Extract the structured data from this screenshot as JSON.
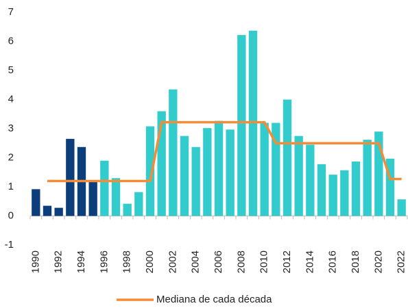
{
  "chart_data": {
    "type": "bar",
    "categories": [
      "1990",
      null,
      "1992",
      null,
      "1994",
      null,
      "1996",
      null,
      "1998",
      null,
      "2000",
      null,
      "2002",
      null,
      "2004",
      null,
      "2006",
      null,
      "2008",
      null,
      "2010",
      null,
      "2012",
      null,
      "2014",
      null,
      "2016",
      null,
      "2018",
      null,
      "2020",
      null,
      "2022"
    ],
    "values": [
      0.92,
      0.35,
      0.28,
      2.65,
      2.37,
      1.2,
      1.9,
      1.3,
      0.42,
      0.82,
      3.08,
      3.6,
      4.35,
      2.75,
      2.37,
      3.02,
      3.27,
      2.97,
      6.22,
      6.37,
      3.2,
      3.2,
      4.0,
      2.75,
      2.45,
      1.78,
      1.42,
      1.57,
      1.87,
      2.62,
      2.9,
      1.97,
      0.57
    ],
    "colors": [
      "#0b3e7a",
      "#0b3e7a",
      "#0b3e7a",
      "#0b3e7a",
      "#0b3e7a",
      "#0b3e7a",
      "#33cccc",
      "#33cccc",
      "#33cccc",
      "#33cccc",
      "#33cccc",
      "#33cccc",
      "#33cccc",
      "#33cccc",
      "#33cccc",
      "#33cccc",
      "#33cccc",
      "#33cccc",
      "#33cccc",
      "#33cccc",
      "#33cccc",
      "#33cccc",
      "#33cccc",
      "#33cccc",
      "#33cccc",
      "#33cccc",
      "#33cccc",
      "#33cccc",
      "#33cccc",
      "#33cccc",
      "#33cccc",
      "#33cccc",
      "#33cccc"
    ],
    "series": [
      {
        "name": "Mediana de cada década",
        "color": "#f28c38",
        "values": [
          null,
          1.2,
          1.2,
          1.2,
          1.2,
          1.2,
          1.2,
          1.2,
          1.2,
          1.2,
          1.2,
          3.22,
          3.22,
          3.22,
          3.22,
          3.22,
          3.22,
          3.22,
          3.22,
          3.22,
          3.22,
          2.5,
          2.5,
          2.5,
          2.5,
          2.5,
          2.5,
          2.5,
          2.5,
          2.5,
          2.5,
          1.27,
          1.27
        ]
      }
    ],
    "ylim": [
      -1,
      7
    ],
    "yticks": [
      -1,
      0,
      1,
      2,
      3,
      4,
      5,
      6,
      7
    ]
  }
}
